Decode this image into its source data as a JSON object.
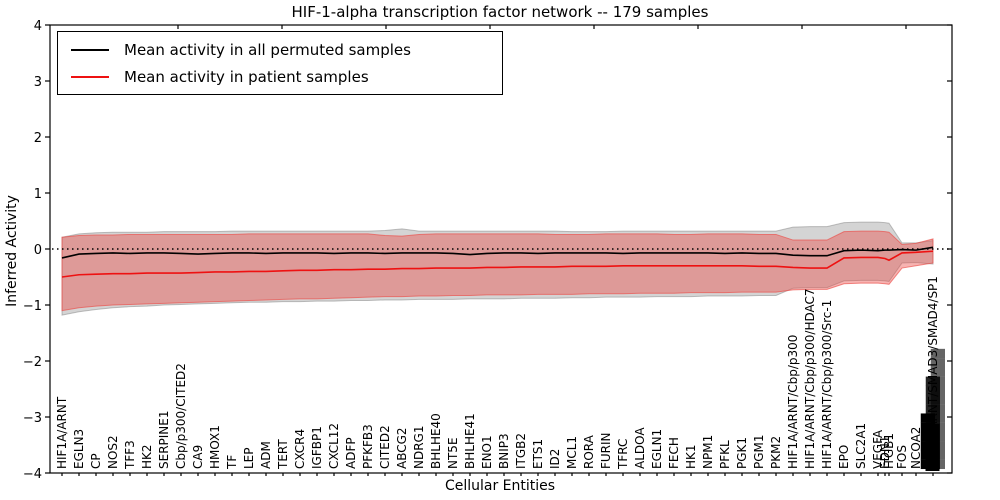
{
  "title": "HIF-1-alpha transcription factor network -- 179 samples",
  "legend": {
    "items": [
      {
        "label": "Mean activity in all permuted samples",
        "color": "#000000"
      },
      {
        "label": "Mean activity in patient samples",
        "color": "#ee1111"
      }
    ]
  },
  "axes": {
    "xlabel": "Cellular Entities",
    "ylabel": "Inferred Activity",
    "yticks": [
      4,
      3,
      2,
      1,
      0,
      -1,
      -2,
      -3,
      -4
    ]
  },
  "chart_data": {
    "type": "line",
    "title": "HIF-1-alpha transcription factor network -- 179 samples",
    "xlabel": "Cellular Entities",
    "ylabel": "Inferred Activity",
    "ylim": [
      -4,
      4
    ],
    "grid": false,
    "zero_line_style": "dotted",
    "legend_position": "upper left",
    "xtick_rotation": 90,
    "categories": [
      "HIF1A/ARNT",
      "EGLN3",
      "CP",
      "NOS2",
      "TFF3",
      "HK2",
      "SERPINE1",
      "Cbp/p300/CITED2",
      "CA9",
      "HMOX1",
      "TF",
      "LEP",
      "ADM",
      "TERT",
      "CXCR4",
      "IGFBP1",
      "CXCL12",
      "ADFP",
      "PFKFB3",
      "CITED2",
      "ABCG2",
      "NDRG1",
      "BHLHE40",
      "NT5E",
      "BHLHE41",
      "ENO1",
      "BNIP3",
      "ITGB2",
      "ETS1",
      "ID2",
      "MCL1",
      "RORA",
      "FURIN",
      "TFRC",
      "ALDOA",
      "EGLN1",
      "FECH",
      "HK1",
      "NPM1",
      "PFKL",
      "PGK1",
      "PGM1",
      "PKM2",
      "HIF1A/ARNT/Cbp/p300",
      "HIF1A/ARNT/Cbp/p300/HDAC7",
      "HIF1A/ARNT/Cbp/p300/Src-1",
      "EPO",
      "SLC2A1",
      "VEGFA",
      "EDN1",
      "ITGB1",
      "FOS",
      "NCOA2",
      "HIF1A/ARNT/SMAD3/SMAD4/SP1"
    ],
    "series": [
      {
        "name": "Mean activity in all permuted samples",
        "color": "#000000",
        "values": [
          -0.16,
          -0.09,
          -0.08,
          -0.07,
          -0.08,
          -0.07,
          -0.07,
          -0.08,
          -0.09,
          -0.08,
          -0.07,
          -0.07,
          -0.08,
          -0.07,
          -0.07,
          -0.07,
          -0.08,
          -0.07,
          -0.07,
          -0.08,
          -0.07,
          -0.07,
          -0.07,
          -0.08,
          -0.1,
          -0.08,
          -0.07,
          -0.07,
          -0.08,
          -0.07,
          -0.07,
          -0.07,
          -0.07,
          -0.08,
          -0.07,
          -0.07,
          -0.07,
          -0.07,
          -0.07,
          -0.08,
          -0.07,
          -0.08,
          -0.08,
          -0.11,
          -0.12,
          -0.12,
          -0.03,
          -0.02,
          -0.03,
          -0.02,
          -0.02,
          -0.01,
          -0.02,
          0.03
        ]
      },
      {
        "name": "Mean activity in patient samples",
        "color": "#ee1111",
        "values": [
          -0.5,
          -0.46,
          -0.45,
          -0.44,
          -0.44,
          -0.43,
          -0.43,
          -0.43,
          -0.42,
          -0.41,
          -0.41,
          -0.4,
          -0.4,
          -0.39,
          -0.38,
          -0.38,
          -0.37,
          -0.37,
          -0.36,
          -0.36,
          -0.35,
          -0.35,
          -0.34,
          -0.34,
          -0.34,
          -0.33,
          -0.33,
          -0.32,
          -0.32,
          -0.32,
          -0.31,
          -0.31,
          -0.31,
          -0.3,
          -0.3,
          -0.3,
          -0.3,
          -0.3,
          -0.3,
          -0.3,
          -0.3,
          -0.31,
          -0.31,
          -0.33,
          -0.34,
          -0.34,
          -0.16,
          -0.15,
          -0.15,
          -0.17,
          -0.2,
          -0.07,
          -0.06,
          -0.04
        ]
      }
    ],
    "bands": [
      {
        "name": "spread of permuted samples",
        "color": "#787878",
        "opacity": 0.32,
        "edge_opacity": 0.45,
        "upper": [
          0.21,
          0.27,
          0.29,
          0.3,
          0.3,
          0.3,
          0.31,
          0.31,
          0.31,
          0.31,
          0.32,
          0.32,
          0.32,
          0.32,
          0.32,
          0.32,
          0.32,
          0.32,
          0.32,
          0.33,
          0.36,
          0.32,
          0.32,
          0.32,
          0.32,
          0.32,
          0.32,
          0.32,
          0.32,
          0.32,
          0.31,
          0.31,
          0.31,
          0.32,
          0.32,
          0.32,
          0.32,
          0.32,
          0.32,
          0.32,
          0.32,
          0.32,
          0.32,
          0.39,
          0.4,
          0.4,
          0.47,
          0.48,
          0.48,
          0.47,
          0.46,
          0.11,
          0.11,
          0.15
        ],
        "lower": [
          -1.18,
          -1.12,
          -1.08,
          -1.05,
          -1.03,
          -1.02,
          -1.0,
          -0.99,
          -0.98,
          -0.97,
          -0.96,
          -0.95,
          -0.95,
          -0.94,
          -0.94,
          -0.93,
          -0.93,
          -0.92,
          -0.92,
          -0.91,
          -0.91,
          -0.9,
          -0.9,
          -0.9,
          -0.89,
          -0.89,
          -0.89,
          -0.88,
          -0.88,
          -0.88,
          -0.87,
          -0.87,
          -0.86,
          -0.86,
          -0.86,
          -0.85,
          -0.85,
          -0.85,
          -0.84,
          -0.84,
          -0.84,
          -0.83,
          -0.83,
          -0.7,
          -0.69,
          -0.69,
          -0.57,
          -0.56,
          -0.56,
          -0.57,
          -0.58,
          -0.25,
          -0.24,
          -0.27
        ]
      },
      {
        "name": "spread of patient samples",
        "color": "#eb4b46",
        "opacity": 0.42,
        "edge_opacity": 0.65,
        "upper": [
          0.21,
          0.24,
          0.25,
          0.25,
          0.26,
          0.26,
          0.26,
          0.26,
          0.26,
          0.26,
          0.26,
          0.27,
          0.27,
          0.27,
          0.27,
          0.27,
          0.27,
          0.27,
          0.27,
          0.24,
          0.23,
          0.26,
          0.27,
          0.27,
          0.27,
          0.27,
          0.27,
          0.27,
          0.27,
          0.26,
          0.26,
          0.26,
          0.27,
          0.27,
          0.27,
          0.27,
          0.26,
          0.26,
          0.27,
          0.27,
          0.27,
          0.26,
          0.26,
          0.16,
          0.16,
          0.16,
          0.31,
          0.32,
          0.32,
          0.31,
          0.3,
          0.08,
          0.1,
          0.18
        ],
        "lower": [
          -1.1,
          -1.05,
          -1.02,
          -1.0,
          -0.99,
          -0.98,
          -0.97,
          -0.96,
          -0.95,
          -0.94,
          -0.93,
          -0.92,
          -0.91,
          -0.9,
          -0.89,
          -0.89,
          -0.88,
          -0.87,
          -0.86,
          -0.85,
          -0.85,
          -0.84,
          -0.84,
          -0.83,
          -0.83,
          -0.82,
          -0.82,
          -0.82,
          -0.81,
          -0.81,
          -0.81,
          -0.8,
          -0.8,
          -0.8,
          -0.79,
          -0.79,
          -0.79,
          -0.78,
          -0.78,
          -0.78,
          -0.77,
          -0.77,
          -0.77,
          -0.73,
          -0.72,
          -0.72,
          -0.62,
          -0.61,
          -0.61,
          -0.62,
          -0.63,
          -0.34,
          -0.3,
          -0.25
        ]
      }
    ],
    "x_overlap_cluster": {
      "legible_suffix": "SMAD4/SP1",
      "note": "many tick labels overlap into an illegible black block at the right edge",
      "mass_glyphs": [
        "██████",
        "██████████",
        "█████████████"
      ]
    }
  }
}
